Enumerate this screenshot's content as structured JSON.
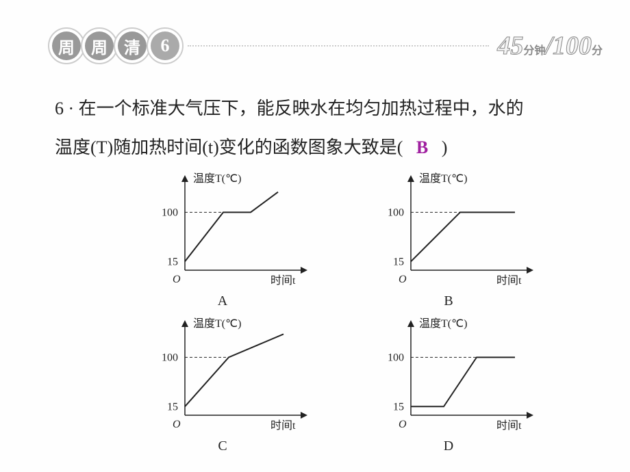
{
  "header": {
    "badge1": "周",
    "badge2": "周",
    "badge3": "清",
    "badge_num": "6",
    "time_big1": "45",
    "time_small1": "分钟",
    "time_slash": "/",
    "time_big2": "100",
    "time_small2": "分"
  },
  "question": {
    "num": "6",
    "dot": "·",
    "line1": "在一个标准大气压下，能反映水在均匀加热过程中，水的",
    "line2": "温度(T)随加热时间(t)变化的函数图象大致是(",
    "line2_end": ")",
    "answer": "B"
  },
  "chart": {
    "y_label": "温度T(℃)",
    "x_label": "时间t",
    "origin": "O",
    "tick_100": "100",
    "tick_15": "15",
    "labels": {
      "A": "A",
      "B": "B",
      "C": "C",
      "D": "D"
    },
    "axis_color": "#222",
    "line_color": "#222",
    "dash_color": "#222",
    "font_size_axis": 16
  },
  "graphs": {
    "A": {
      "type": "line",
      "points": [
        [
          0,
          15
        ],
        [
          35,
          100
        ],
        [
          60,
          100
        ],
        [
          85,
          135
        ]
      ],
      "ticks_y": [
        15,
        100
      ]
    },
    "B": {
      "type": "line",
      "points": [
        [
          0,
          15
        ],
        [
          45,
          100
        ],
        [
          95,
          100
        ]
      ],
      "ticks_y": [
        15,
        100
      ]
    },
    "C": {
      "type": "line",
      "points": [
        [
          0,
          15
        ],
        [
          40,
          100
        ],
        [
          90,
          140
        ]
      ],
      "ticks_y": [
        15,
        100
      ]
    },
    "D": {
      "type": "line",
      "points": [
        [
          0,
          15
        ],
        [
          30,
          15
        ],
        [
          60,
          100
        ],
        [
          95,
          100
        ]
      ],
      "ticks_y": [
        15,
        100
      ]
    }
  }
}
